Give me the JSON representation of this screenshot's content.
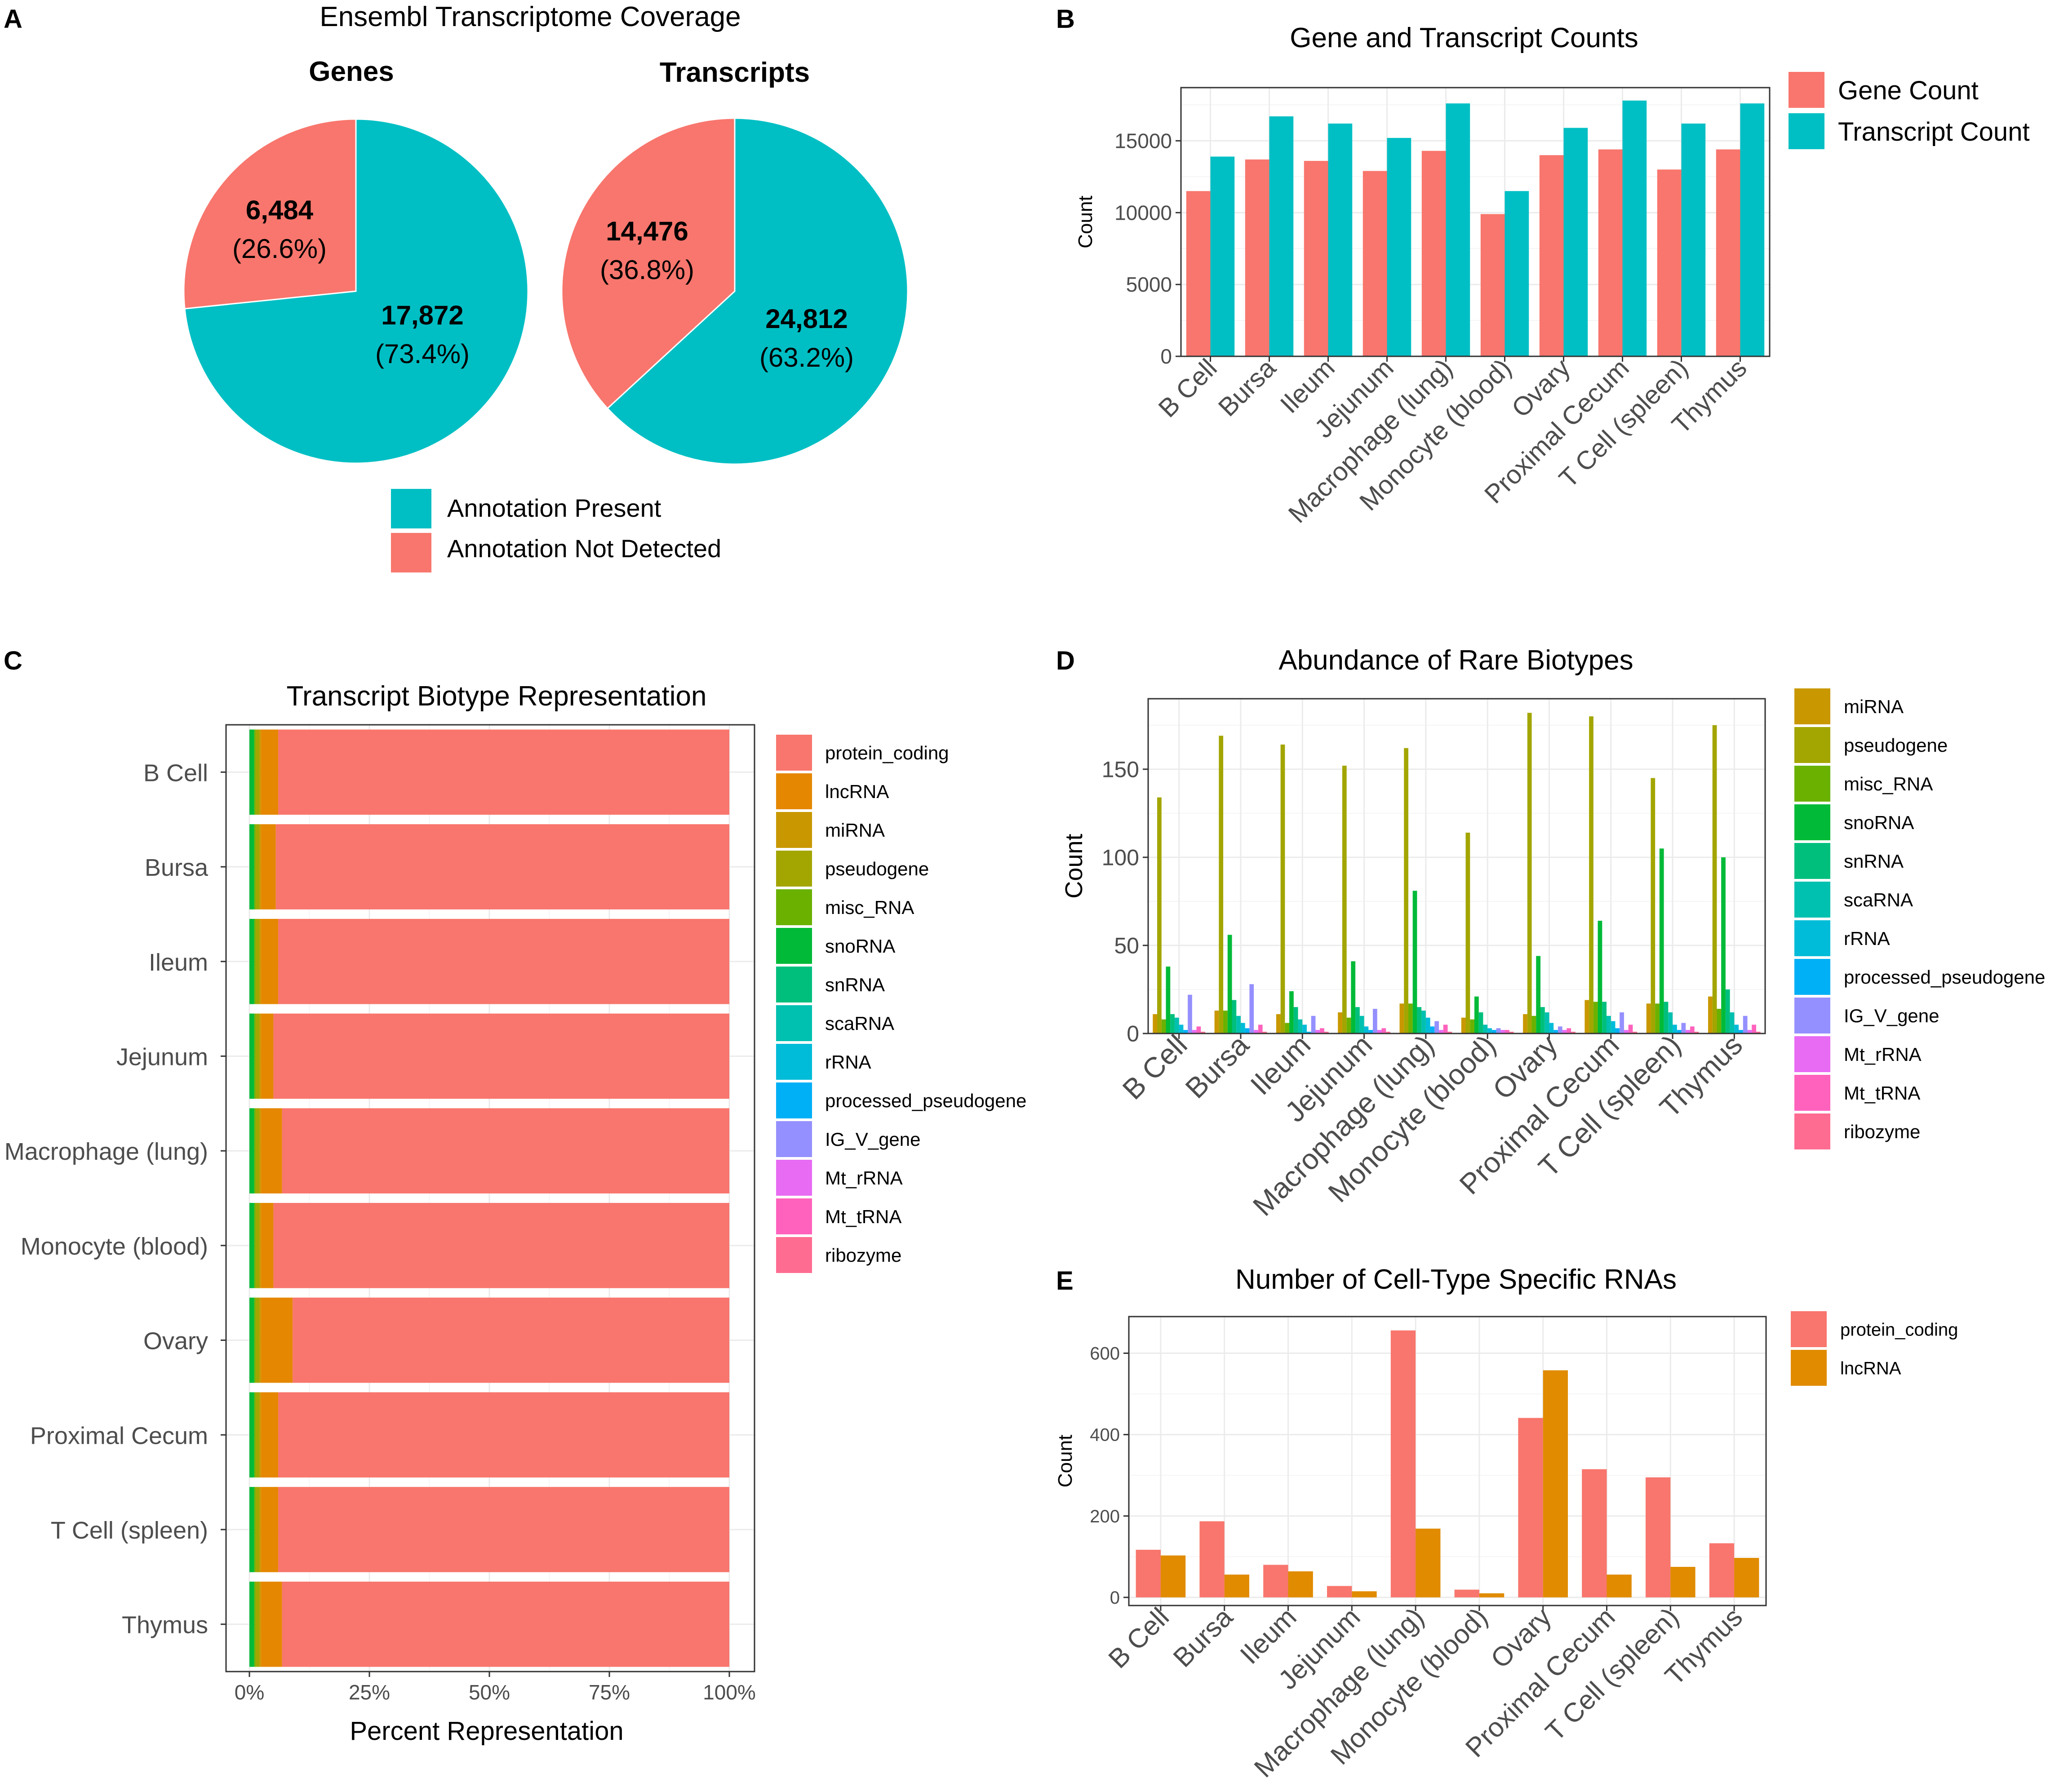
{
  "panel_letters": [
    "A",
    "B",
    "C",
    "D",
    "E"
  ],
  "colors": {
    "salmon": "#F8766D",
    "teal": "#00BFC4",
    "orange": "#E08B00",
    "grid": "#EBEBEB",
    "panel_border": "#333333",
    "axis_text": "#4D4D4D"
  },
  "chart_data": [
    {
      "id": "A",
      "type": "pie",
      "title": "Ensembl Transcriptome Coverage",
      "pies": [
        {
          "title": "Genes",
          "slices": [
            {
              "label": "Annotation Present",
              "count_text": "17,872",
              "pct_text": "(73.4%)",
              "value": 17872
            },
            {
              "label": "Annotation Not Detected",
              "count_text": "6,484",
              "pct_text": "(26.6%)",
              "value": 6484
            }
          ]
        },
        {
          "title": "Transcripts",
          "slices": [
            {
              "label": "Annotation Present",
              "count_text": "24,812",
              "pct_text": "(63.2%)",
              "value": 24812
            },
            {
              "label": "Annotation Not Detected",
              "count_text": "14,476",
              "pct_text": "(36.8%)",
              "value": 14476
            }
          ]
        }
      ],
      "legend": [
        "Annotation Present",
        "Annotation Not Detected"
      ]
    },
    {
      "id": "B",
      "type": "bar",
      "title": "Gene and Transcript Counts",
      "xlabel": "",
      "ylabel": "Count",
      "ylim": [
        0,
        18700
      ],
      "yticks": [
        0,
        5000,
        10000,
        15000
      ],
      "categories": [
        "B Cell",
        "Bursa",
        "Ileum",
        "Jejunum",
        "Macrophage (lung)",
        "Monocyte (blood)",
        "Ovary",
        "Proximal Cecum",
        "T Cell (spleen)",
        "Thymus"
      ],
      "series": [
        {
          "name": "Gene Count",
          "values": [
            11500,
            13700,
            13600,
            12900,
            14300,
            9900,
            14000,
            14400,
            13000,
            14400
          ]
        },
        {
          "name": "Transcript Count",
          "values": [
            13900,
            16700,
            16200,
            15200,
            17600,
            11500,
            15900,
            17800,
            16200,
            17600
          ]
        }
      ]
    },
    {
      "id": "C",
      "type": "bar",
      "orientation": "horizontal-stacked",
      "title": "Transcript Biotype Representation",
      "xlabel": "Percent Representation",
      "ylabel": "",
      "xticks": [
        "0%",
        "25%",
        "50%",
        "75%",
        "100%"
      ],
      "categories": [
        "B Cell",
        "Bursa",
        "Ileum",
        "Jejunum",
        "Macrophage (lung)",
        "Monocyte (blood)",
        "Ovary",
        "Proximal Cecum",
        "T Cell (spleen)",
        "Thymus"
      ],
      "legend": [
        "protein_coding",
        "lncRNA",
        "miRNA",
        "pseudogene",
        "misc_RNA",
        "snoRNA",
        "snRNA",
        "scaRNA",
        "rRNA",
        "processed_pseudogene",
        "IG_V_gene",
        "Mt_rRNA",
        "Mt_tRNA",
        "ribozyme"
      ],
      "series": [
        {
          "name": "snoRNA",
          "values": [
            1.0,
            1.0,
            1.0,
            1.0,
            1.0,
            1.0,
            1.0,
            1.0,
            1.0,
            1.0
          ]
        },
        {
          "name": "misc_RNA",
          "values": [
            0.3,
            0.3,
            0.3,
            0.3,
            0.3,
            0.3,
            0.3,
            0.3,
            0.3,
            0.3
          ]
        },
        {
          "name": "pseudogene",
          "values": [
            0.8,
            0.8,
            0.8,
            0.8,
            0.8,
            0.8,
            0.8,
            0.8,
            0.8,
            0.8
          ]
        },
        {
          "name": "miRNA",
          "values": [
            0.3,
            0.3,
            0.3,
            0.3,
            0.3,
            0.3,
            0.3,
            0.3,
            0.3,
            0.3
          ]
        },
        {
          "name": "lncRNA",
          "values": [
            3.6,
            3.1,
            3.6,
            2.6,
            4.4,
            2.6,
            6.6,
            3.6,
            3.6,
            4.4
          ]
        },
        {
          "name": "protein_coding",
          "values": [
            94.0,
            94.5,
            94.0,
            95.0,
            93.2,
            95.0,
            91.0,
            94.0,
            94.0,
            93.2
          ]
        }
      ]
    },
    {
      "id": "D",
      "type": "bar",
      "title": "Abundance of Rare Biotypes",
      "xlabel": "",
      "ylabel": "Count",
      "ylim": [
        0,
        190
      ],
      "yticks": [
        0,
        50,
        100,
        150
      ],
      "categories": [
        "B Cell",
        "Bursa",
        "Ileum",
        "Jejunum",
        "Macrophage (lung)",
        "Monocyte (blood)",
        "Ovary",
        "Proximal Cecum",
        "T Cell (spleen)",
        "Thymus"
      ],
      "series": [
        {
          "name": "miRNA",
          "values": [
            11,
            13,
            11,
            12,
            17,
            9,
            11,
            19,
            17,
            21
          ]
        },
        {
          "name": "pseudogene",
          "values": [
            134,
            169,
            164,
            152,
            162,
            114,
            182,
            180,
            145,
            175
          ]
        },
        {
          "name": "misc_RNA",
          "values": [
            8,
            13,
            6,
            9,
            17,
            8,
            10,
            18,
            17,
            14
          ]
        },
        {
          "name": "snoRNA",
          "values": [
            38,
            56,
            24,
            41,
            81,
            21,
            44,
            64,
            105,
            100
          ]
        },
        {
          "name": "snRNA",
          "values": [
            11,
            19,
            15,
            15,
            15,
            12,
            15,
            18,
            18,
            25
          ]
        },
        {
          "name": "scaRNA",
          "values": [
            9,
            10,
            8,
            10,
            13,
            5,
            12,
            10,
            12,
            12
          ]
        },
        {
          "name": "rRNA",
          "values": [
            5,
            6,
            5,
            4,
            9,
            3,
            6,
            7,
            5,
            5
          ]
        },
        {
          "name": "processed_pseudogene",
          "values": [
            2,
            3,
            1,
            2,
            4,
            2,
            2,
            3,
            2,
            2
          ]
        },
        {
          "name": "IG_V_gene",
          "values": [
            22,
            28,
            10,
            14,
            7,
            3,
            4,
            12,
            6,
            10
          ]
        },
        {
          "name": "Mt_rRNA",
          "values": [
            2,
            2,
            2,
            2,
            2,
            2,
            2,
            2,
            2,
            2
          ]
        },
        {
          "name": "Mt_tRNA",
          "values": [
            4,
            5,
            3,
            3,
            5,
            2,
            3,
            5,
            4,
            5
          ]
        },
        {
          "name": "ribozyme",
          "values": [
            1,
            1,
            1,
            1,
            1,
            1,
            1,
            1,
            1,
            1
          ]
        }
      ]
    },
    {
      "id": "E",
      "type": "bar",
      "title": "Number of Cell-Type Specific RNAs",
      "xlabel": "",
      "ylabel": "Count",
      "ylim": [
        -20,
        690
      ],
      "yticks": [
        0,
        200,
        400,
        600
      ],
      "categories": [
        "B Cell",
        "Bursa",
        "Ileum",
        "Jejunum",
        "Macrophage (lung)",
        "Monocyte (blood)",
        "Ovary",
        "Proximal Cecum",
        "T Cell (spleen)",
        "Thymus"
      ],
      "series": [
        {
          "name": "protein_coding",
          "values": [
            117,
            187,
            80,
            28,
            656,
            19,
            441,
            315,
            295,
            133
          ]
        },
        {
          "name": "lncRNA",
          "values": [
            103,
            56,
            64,
            15,
            169,
            10,
            558,
            56,
            75,
            97
          ]
        }
      ]
    }
  ]
}
